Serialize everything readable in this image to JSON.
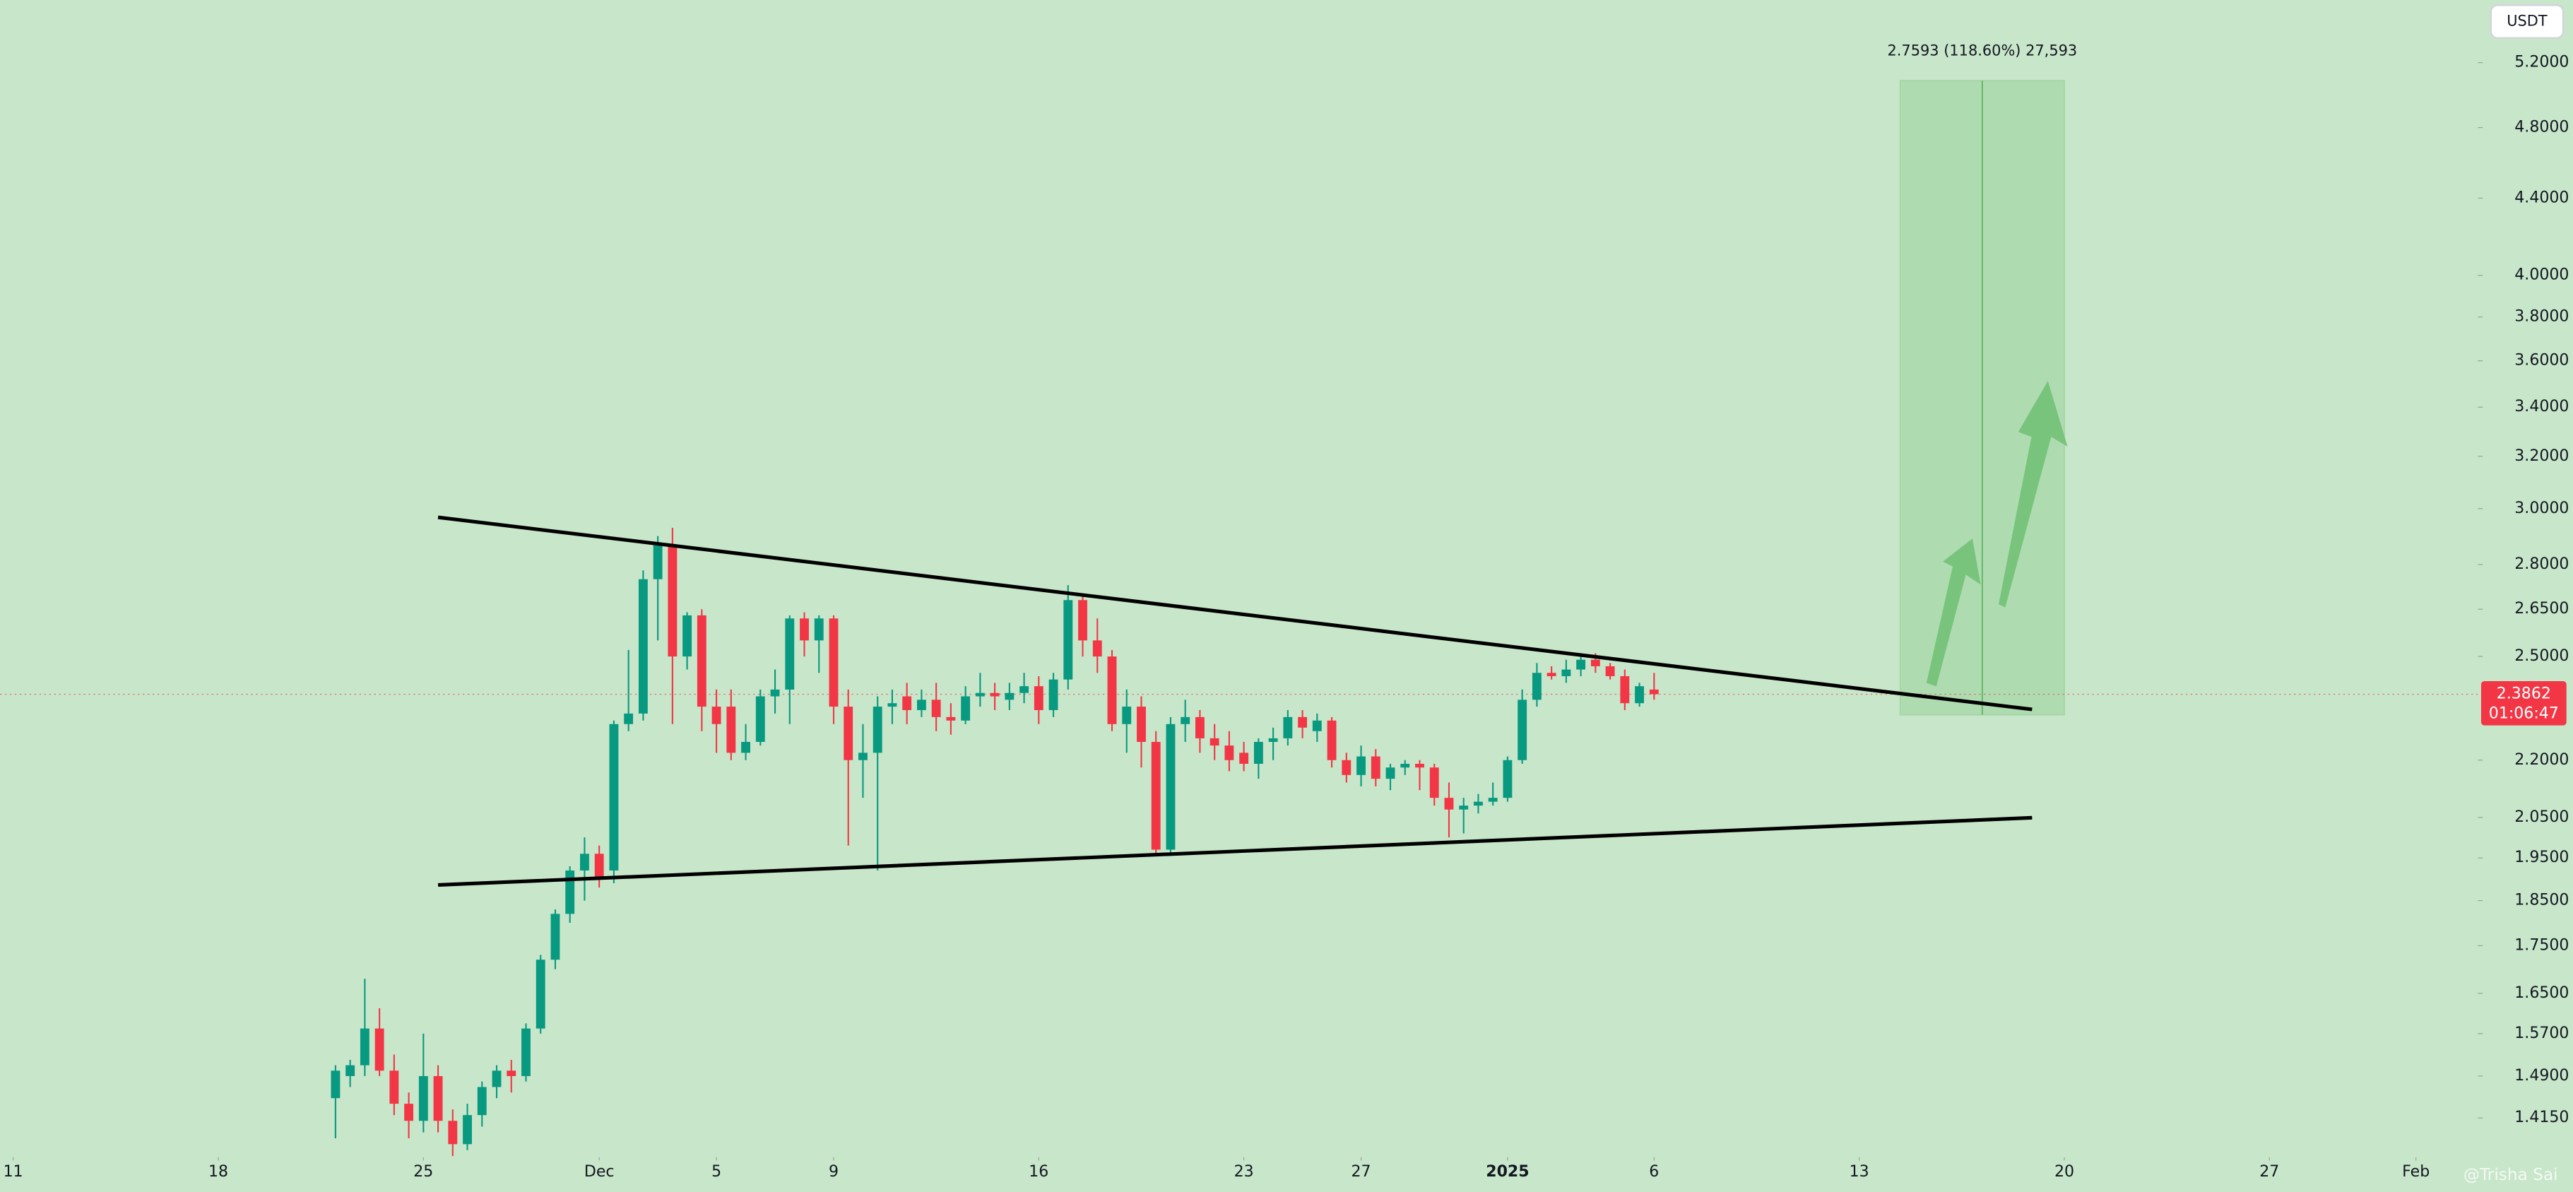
{
  "chart_data": {
    "type": "candlestick",
    "currency": "USDT",
    "log_scale": true,
    "grid": false,
    "up_color": "#089981",
    "down_color": "#f23645",
    "xlim": [
      -0.45,
      84
    ],
    "ylim": [
      1.348,
      5.616
    ],
    "xticks": [
      {
        "value": 0,
        "label": "11"
      },
      {
        "value": 7,
        "label": "18"
      },
      {
        "value": 14,
        "label": "25"
      },
      {
        "value": 20,
        "label": "Dec"
      },
      {
        "value": 24,
        "label": "5"
      },
      {
        "value": 28,
        "label": "9"
      },
      {
        "value": 35,
        "label": "16"
      },
      {
        "value": 42,
        "label": "23"
      },
      {
        "value": 46,
        "label": "27"
      },
      {
        "value": 51,
        "label": "2025"
      },
      {
        "value": 56,
        "label": "6"
      },
      {
        "value": 63,
        "label": "13"
      },
      {
        "value": 70,
        "label": "20"
      },
      {
        "value": 77,
        "label": "27"
      },
      {
        "value": 82,
        "label": "Feb"
      }
    ],
    "yticks": [
      {
        "value": 5.2,
        "label": "5.2000"
      },
      {
        "value": 4.8,
        "label": "4.8000"
      },
      {
        "value": 4.4,
        "label": "4.4000"
      },
      {
        "value": 4.0,
        "label": "4.0000"
      },
      {
        "value": 3.8,
        "label": "3.8000"
      },
      {
        "value": 3.6,
        "label": "3.6000"
      },
      {
        "value": 3.4,
        "label": "3.4000"
      },
      {
        "value": 3.2,
        "label": "3.2000"
      },
      {
        "value": 3.0,
        "label": "3.0000"
      },
      {
        "value": 2.8,
        "label": "2.8000"
      },
      {
        "value": 2.65,
        "label": "2.6500"
      },
      {
        "value": 2.5,
        "label": "2.5000"
      },
      {
        "value": 2.2,
        "label": "2.2000"
      },
      {
        "value": 2.05,
        "label": "2.0500"
      },
      {
        "value": 1.95,
        "label": "1.9500"
      },
      {
        "value": 1.85,
        "label": "1.8500"
      },
      {
        "value": 1.75,
        "label": "1.7500"
      },
      {
        "value": 1.65,
        "label": "1.6500"
      },
      {
        "value": 1.57,
        "label": "1.5700"
      },
      {
        "value": 1.49,
        "label": "1.4900"
      },
      {
        "value": 1.415,
        "label": "1.4150"
      }
    ],
    "x": [
      11,
      11.5,
      12,
      12.5,
      13,
      13.5,
      14,
      14.5,
      15,
      15.5,
      16,
      16.5,
      17,
      17.5,
      18,
      18.5,
      19,
      19.5,
      20,
      20.5,
      21,
      21.5,
      22,
      22.5,
      23,
      23.5,
      24,
      24.5,
      25,
      25.5,
      26,
      26.5,
      27,
      27.5,
      28,
      28.5,
      29,
      29.5,
      30,
      30.5,
      31,
      31.5,
      32,
      32.5,
      33,
      33.5,
      34,
      34.5,
      35,
      35.5,
      36,
      36.5,
      37,
      37.5,
      38,
      38.5,
      39,
      39.5,
      40,
      40.5,
      41,
      41.5,
      42,
      42.5,
      43,
      43.5,
      44,
      44.5,
      45,
      45.5,
      46,
      46.5,
      47,
      47.5,
      48,
      48.5,
      49,
      49.5,
      50,
      50.5,
      51,
      51.5,
      52,
      52.5,
      53,
      53.5,
      54,
      54.5,
      55,
      55.5,
      56
    ],
    "open": [
      1.45,
      1.49,
      1.51,
      1.58,
      1.5,
      1.44,
      1.41,
      1.49,
      1.41,
      1.37,
      1.42,
      1.47,
      1.5,
      1.49,
      1.58,
      1.72,
      1.82,
      1.92,
      1.96,
      1.92,
      2.3,
      2.33,
      2.75,
      2.87,
      2.5,
      2.63,
      2.35,
      2.35,
      2.22,
      2.25,
      2.38,
      2.4,
      2.62,
      2.55,
      2.62,
      2.35,
      2.2,
      2.22,
      2.35,
      2.38,
      2.34,
      2.37,
      2.32,
      2.31,
      2.38,
      2.39,
      2.37,
      2.39,
      2.41,
      2.34,
      2.43,
      2.68,
      2.55,
      2.5,
      2.3,
      2.35,
      2.25,
      1.97,
      2.3,
      2.32,
      2.26,
      2.24,
      2.22,
      2.19,
      2.25,
      2.26,
      2.32,
      2.28,
      2.31,
      2.2,
      2.16,
      2.21,
      2.15,
      2.18,
      2.19,
      2.18,
      2.1,
      2.07,
      2.08,
      2.09,
      2.1,
      2.2,
      2.37,
      2.45,
      2.44,
      2.46,
      2.49,
      2.47,
      2.44,
      2.36,
      2.4
    ],
    "high": [
      1.51,
      1.52,
      1.68,
      1.62,
      1.53,
      1.46,
      1.57,
      1.51,
      1.43,
      1.44,
      1.48,
      1.51,
      1.52,
      1.59,
      1.73,
      1.83,
      1.93,
      2.0,
      1.98,
      2.31,
      2.52,
      2.78,
      2.9,
      2.93,
      2.64,
      2.65,
      2.4,
      2.4,
      2.3,
      2.4,
      2.46,
      2.63,
      2.64,
      2.63,
      2.63,
      2.4,
      2.3,
      2.38,
      2.4,
      2.42,
      2.4,
      2.42,
      2.36,
      2.41,
      2.45,
      2.42,
      2.42,
      2.45,
      2.44,
      2.45,
      2.73,
      2.7,
      2.62,
      2.52,
      2.4,
      2.38,
      2.28,
      2.32,
      2.37,
      2.34,
      2.3,
      2.28,
      2.25,
      2.26,
      2.29,
      2.34,
      2.34,
      2.33,
      2.32,
      2.22,
      2.24,
      2.23,
      2.19,
      2.2,
      2.2,
      2.19,
      2.14,
      2.1,
      2.11,
      2.14,
      2.21,
      2.4,
      2.48,
      2.47,
      2.49,
      2.5,
      2.51,
      2.48,
      2.46,
      2.42,
      2.45
    ],
    "low": [
      1.38,
      1.47,
      1.49,
      1.49,
      1.42,
      1.38,
      1.39,
      1.39,
      1.35,
      1.36,
      1.4,
      1.45,
      1.46,
      1.48,
      1.57,
      1.7,
      1.8,
      1.85,
      1.88,
      1.89,
      2.28,
      2.31,
      2.55,
      2.3,
      2.46,
      2.28,
      2.22,
      2.2,
      2.2,
      2.24,
      2.33,
      2.3,
      2.5,
      2.45,
      2.3,
      1.98,
      2.1,
      1.92,
      2.3,
      2.3,
      2.32,
      2.28,
      2.27,
      2.3,
      2.35,
      2.34,
      2.34,
      2.36,
      2.3,
      2.32,
      2.4,
      2.5,
      2.45,
      2.28,
      2.22,
      2.18,
      1.96,
      1.96,
      2.25,
      2.22,
      2.2,
      2.17,
      2.17,
      2.15,
      2.2,
      2.24,
      2.26,
      2.25,
      2.18,
      2.14,
      2.13,
      2.13,
      2.12,
      2.16,
      2.12,
      2.08,
      2.0,
      2.01,
      2.06,
      2.08,
      2.09,
      2.19,
      2.35,
      2.43,
      2.42,
      2.44,
      2.45,
      2.43,
      2.34,
      2.35,
      2.37
    ],
    "close": [
      1.5,
      1.51,
      1.58,
      1.5,
      1.44,
      1.41,
      1.49,
      1.41,
      1.37,
      1.42,
      1.47,
      1.5,
      1.49,
      1.58,
      1.72,
      1.82,
      1.92,
      1.96,
      1.9,
      2.3,
      2.33,
      2.75,
      2.87,
      2.5,
      2.63,
      2.35,
      2.3,
      2.22,
      2.25,
      2.38,
      2.4,
      2.62,
      2.55,
      2.62,
      2.35,
      2.2,
      2.22,
      2.35,
      2.36,
      2.34,
      2.37,
      2.32,
      2.31,
      2.38,
      2.39,
      2.38,
      2.39,
      2.41,
      2.34,
      2.43,
      2.68,
      2.55,
      2.5,
      2.3,
      2.35,
      2.25,
      1.97,
      2.3,
      2.32,
      2.26,
      2.24,
      2.2,
      2.19,
      2.25,
      2.26,
      2.32,
      2.29,
      2.31,
      2.2,
      2.16,
      2.21,
      2.15,
      2.18,
      2.19,
      2.18,
      2.1,
      2.07,
      2.08,
      2.09,
      2.1,
      2.2,
      2.37,
      2.45,
      2.44,
      2.46,
      2.49,
      2.47,
      2.44,
      2.36,
      2.41,
      2.3862
    ],
    "trend_lines": [
      {
        "x": [
          14.5,
          68.9
        ],
        "y": [
          2.968,
          2.342
        ]
      },
      {
        "x": [
          14.5,
          68.9
        ],
        "y": [
          1.886,
          2.049
        ]
      }
    ],
    "target": {
      "label": "2.7593 (118.60%) 27,593",
      "x": [
        64.4,
        70.0
      ],
      "from": 2.3266,
      "to": 5.0859
    },
    "last_price": 2.3862,
    "countdown": "01:06:47",
    "watermark": "@Trisha Sai"
  }
}
